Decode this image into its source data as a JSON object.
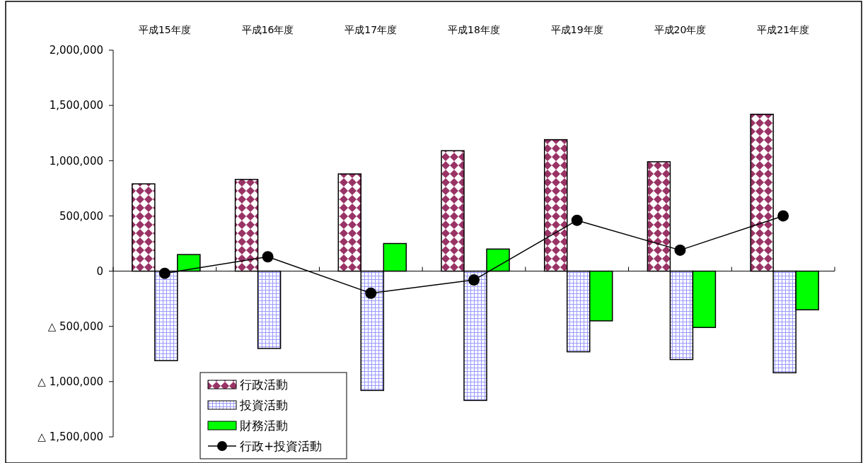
{
  "chart_data": {
    "type": "bar",
    "categories": [
      "平成15年度",
      "平成16年度",
      "平成17年度",
      "平成18年度",
      "平成19年度",
      "平成20年度",
      "平成21年度"
    ],
    "series": [
      {
        "name": "行政活動",
        "color": "#993366",
        "values": [
          790000,
          830000,
          880000,
          1090000,
          1190000,
          990000,
          1420000
        ]
      },
      {
        "name": "投資活動",
        "color": "#9999ff",
        "values": [
          -810000,
          -700000,
          -1080000,
          -1170000,
          -730000,
          -800000,
          -920000
        ]
      },
      {
        "name": "財務活動",
        "color": "#00ff00",
        "values": [
          150000,
          0,
          250000,
          200000,
          -450000,
          -510000,
          -350000
        ]
      },
      {
        "name": "行政+投資活動",
        "type": "line",
        "color": "#000000",
        "marker": "circle",
        "values": [
          -20000,
          130000,
          -200000,
          -80000,
          460000,
          190000,
          500000
        ]
      }
    ],
    "ylim": [
      -1500000,
      2000000
    ],
    "yticks": [
      {
        "value": -1500000,
        "label": "△ 1,500,000"
      },
      {
        "value": -1000000,
        "label": "△ 1,000,000"
      },
      {
        "value": -500000,
        "label": "△ 500,000"
      },
      "0",
      {
        "value": 500000,
        "label": "500,000"
      },
      {
        "value": 1000000,
        "label": "1,000,000"
      },
      {
        "value": 1500000,
        "label": "1,500,000"
      },
      {
        "value": 2000000,
        "label": "2,000,000"
      }
    ],
    "grid": false,
    "legend": "bottom left"
  }
}
